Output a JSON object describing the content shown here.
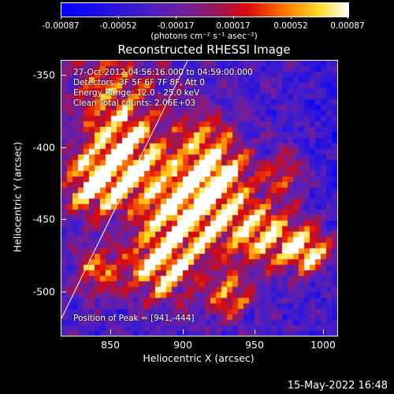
{
  "colorbar": {
    "ticks": [
      "-0.00087",
      "-0.00052",
      "-0.00017",
      "0.00017",
      "0.00052",
      "0.00087"
    ],
    "units": "(photons cm⁻² s⁻¹ asec⁻²)"
  },
  "title": "Reconstructed RHESSI Image",
  "annotations": {
    "time_range": "27-Oct-2012 04:56:16.000 to 04:59:00.000",
    "detectors": "Detectors: 3F 5F 6F 7F 8F, Att 0",
    "energy": "Energy Range: 12.0 - 25.0 keV",
    "clean": "Clean     Total counts: 2.06E+03",
    "peak": "Position of Peak = [941,-444]"
  },
  "axes": {
    "x_label": "Heliocentric X (arcsec)",
    "y_label": "Heliocentric Y (arcsec)",
    "x_ticks": [
      "850",
      "900",
      "950",
      "1000"
    ],
    "y_ticks": [
      "-350",
      "-400",
      "-450",
      "-500"
    ]
  },
  "date_stamp": "15-May-2022 16:48",
  "colors": {
    "background": "#000000",
    "limb_line": "#ffffff",
    "colormap_low": "#0000ff",
    "colormap_mid": "#7a1fa0",
    "colormap_high": "#ffffff"
  }
}
